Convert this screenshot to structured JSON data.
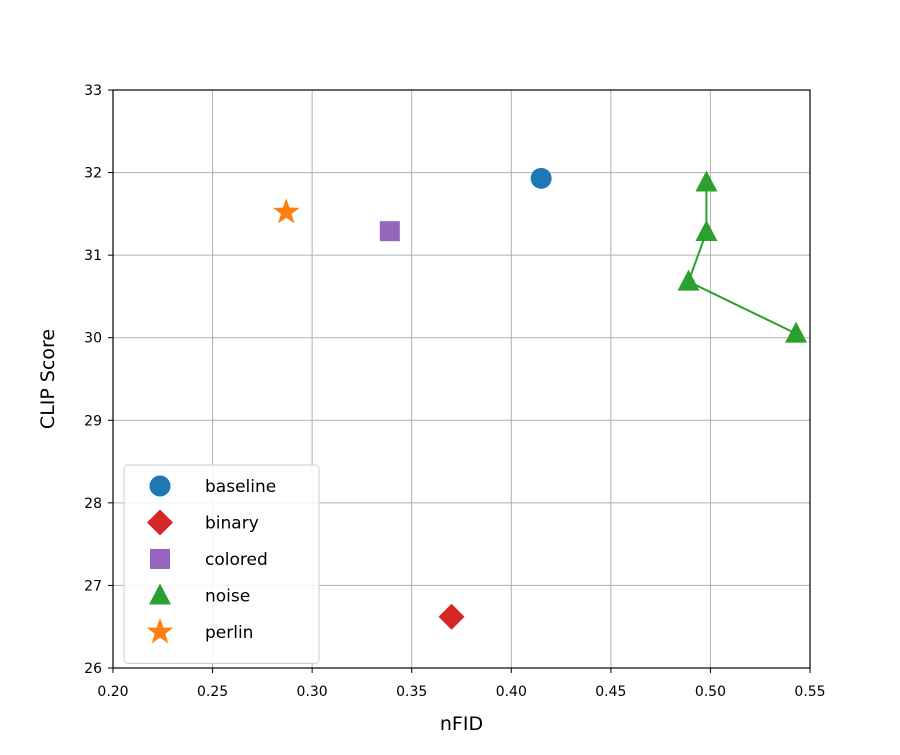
{
  "chart_data": {
    "type": "scatter",
    "title": "",
    "xlabel": "nFID",
    "ylabel": "CLIP Score",
    "xlim": [
      0.2,
      0.55
    ],
    "ylim": [
      26,
      33
    ],
    "xticks": [
      0.2,
      0.25,
      0.3,
      0.35,
      0.4,
      0.45,
      0.5,
      0.55
    ],
    "xtick_labels": [
      "0.20",
      "0.25",
      "0.30",
      "0.35",
      "0.40",
      "0.45",
      "0.50",
      "0.55"
    ],
    "yticks": [
      26,
      27,
      28,
      29,
      30,
      31,
      32,
      33
    ],
    "ytick_labels": [
      "26",
      "27",
      "28",
      "29",
      "30",
      "31",
      "32",
      "33"
    ],
    "grid": true,
    "legend_position": "lower-left",
    "series": [
      {
        "name": "baseline",
        "marker": "circle",
        "color": "#1f77b4",
        "connected": false,
        "points": [
          {
            "x": 0.415,
            "y": 31.93
          }
        ]
      },
      {
        "name": "binary",
        "marker": "diamond",
        "color": "#d62728",
        "connected": false,
        "points": [
          {
            "x": 0.37,
            "y": 26.62
          }
        ]
      },
      {
        "name": "colored",
        "marker": "square",
        "color": "#9467bd",
        "connected": false,
        "points": [
          {
            "x": 0.339,
            "y": 31.29
          }
        ]
      },
      {
        "name": "noise",
        "marker": "triangle",
        "color": "#2ca02c",
        "connected": true,
        "points": [
          {
            "x": 0.498,
            "y": 31.88
          },
          {
            "x": 0.498,
            "y": 31.28
          },
          {
            "x": 0.489,
            "y": 30.68
          },
          {
            "x": 0.543,
            "y": 30.05
          }
        ]
      },
      {
        "name": "perlin",
        "marker": "star",
        "color": "#ff7f0e",
        "connected": false,
        "points": [
          {
            "x": 0.287,
            "y": 31.52
          }
        ]
      }
    ]
  }
}
